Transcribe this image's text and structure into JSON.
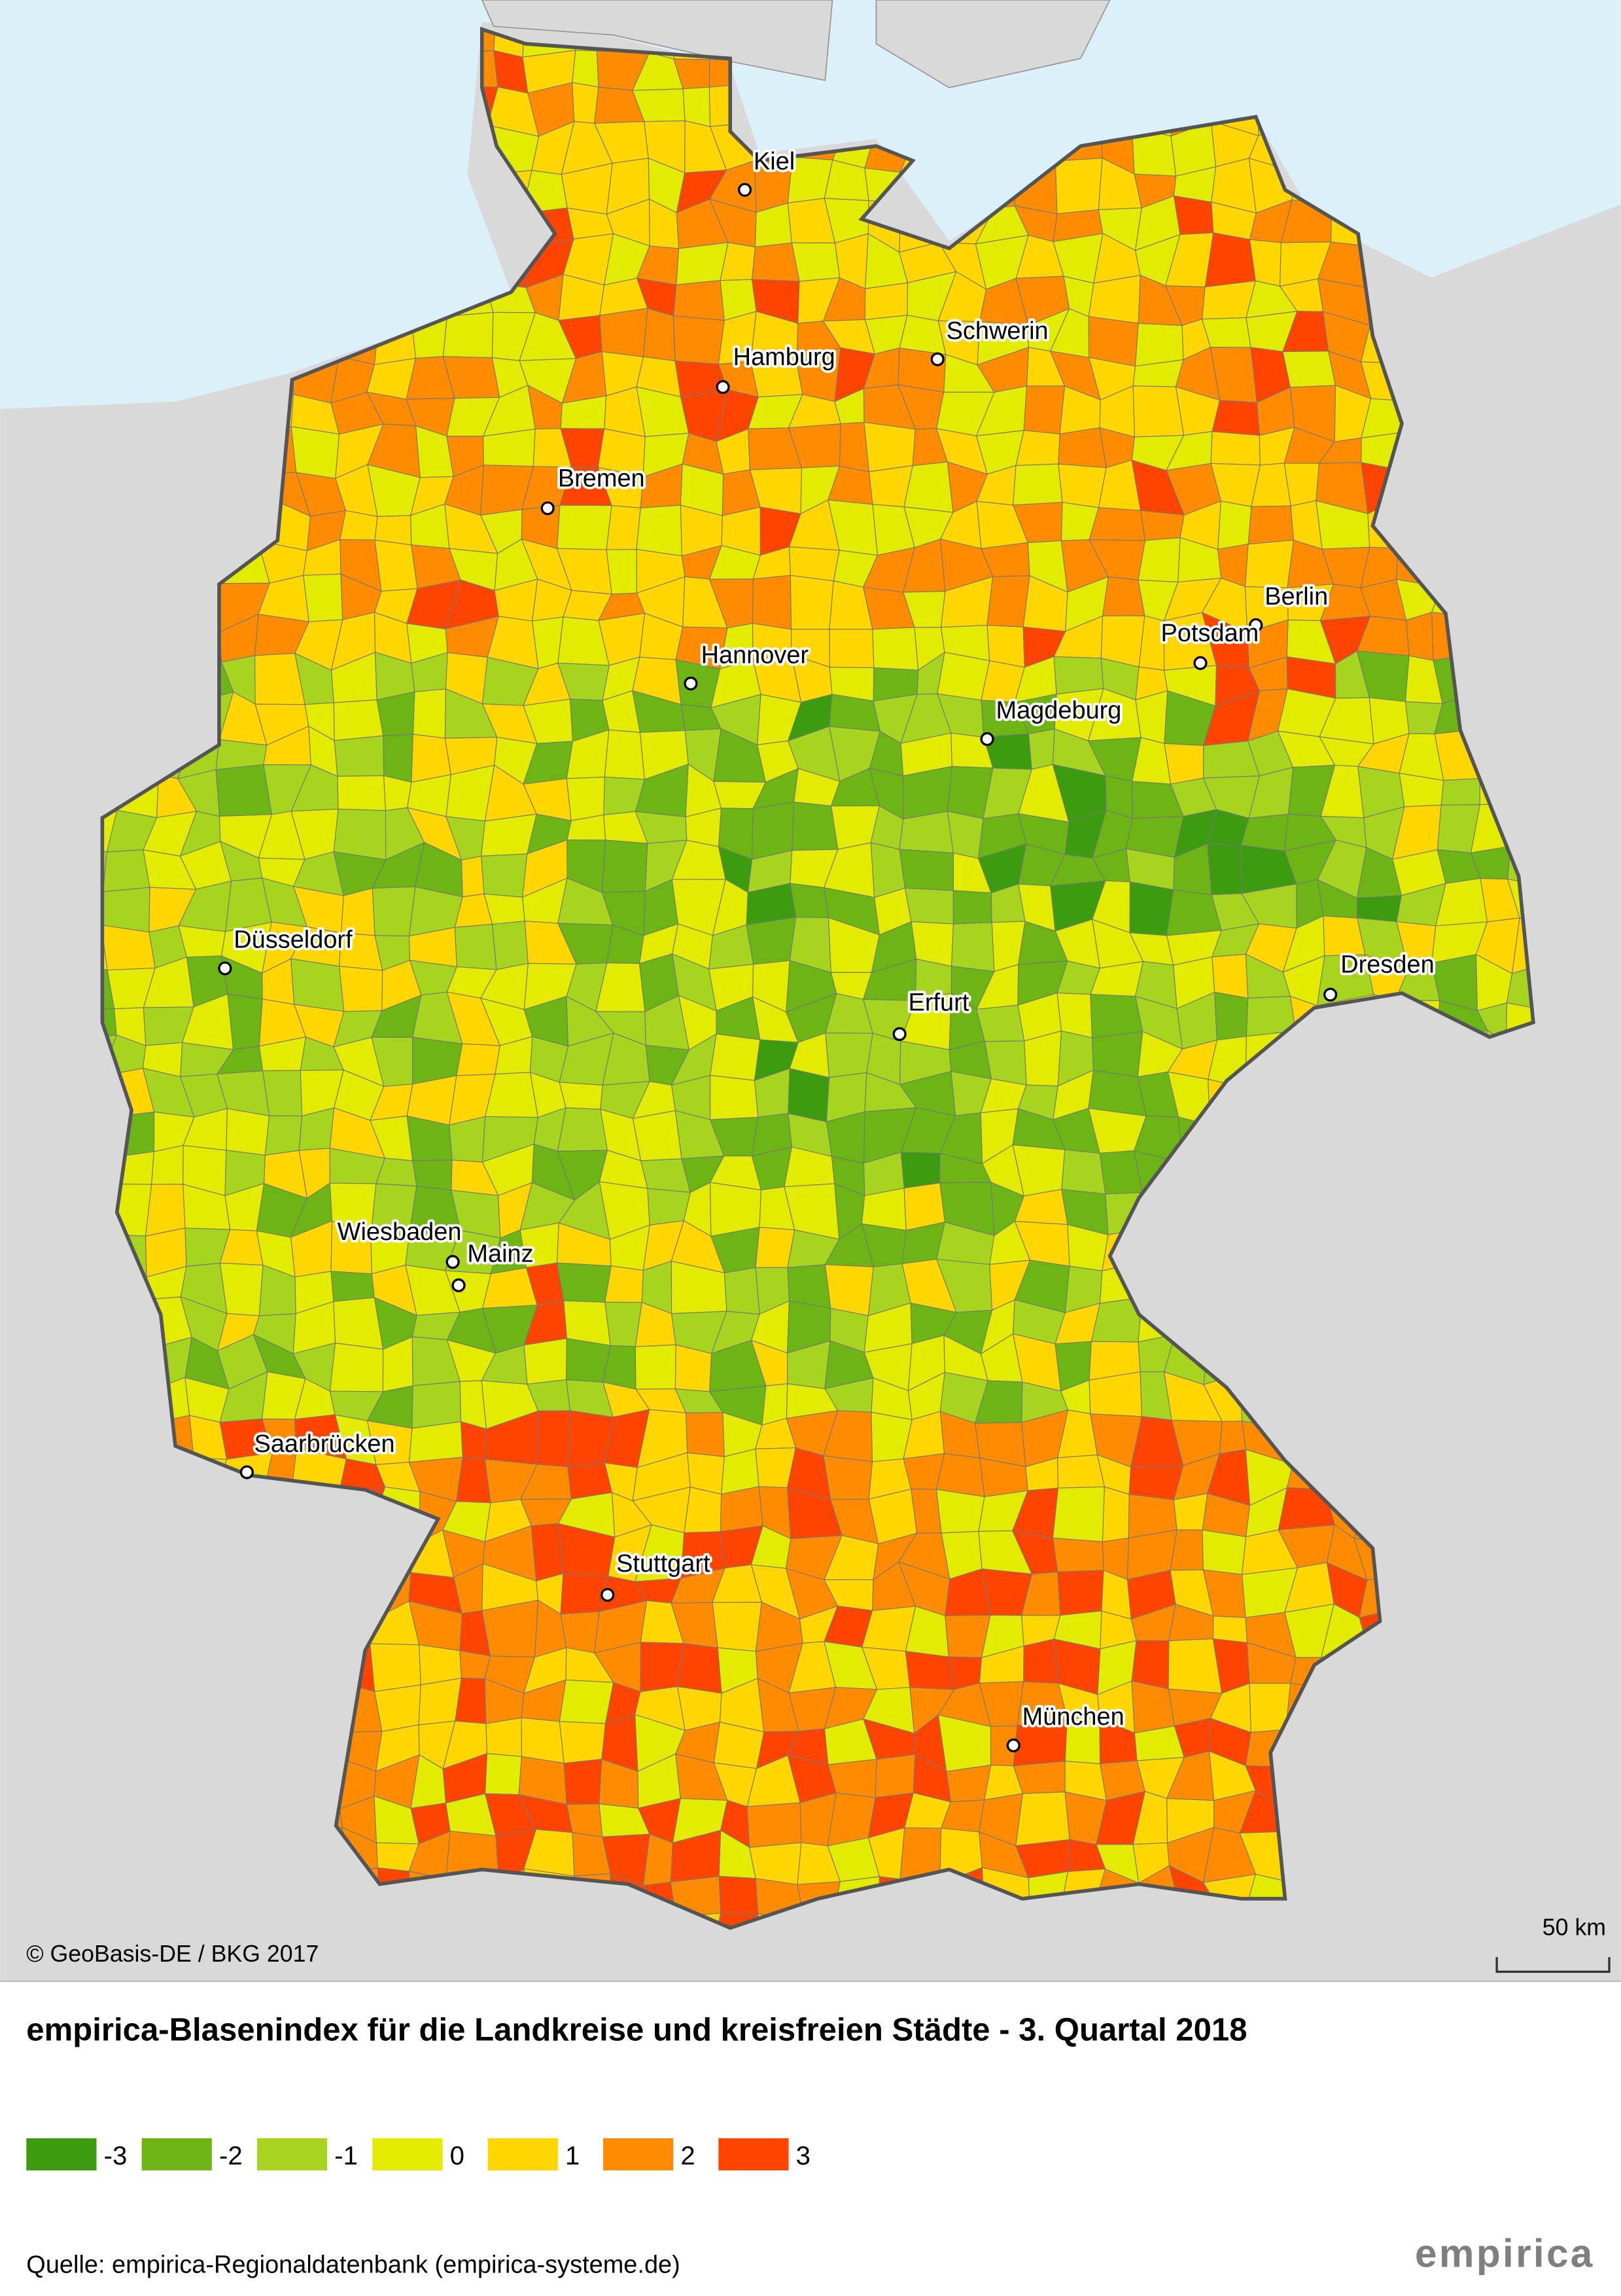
{
  "header": {
    "title": "empirica-Blasenindex für die Landkreise und kreisfreien Städte - 3. Quartal 2018",
    "copyright": "© GeoBasis-DE / BKG 2017",
    "scale": "50 km"
  },
  "map": {
    "cities": [
      "Kiel",
      "Hamburg",
      "Schwerin",
      "Bremen",
      "Berlin",
      "Potsdam",
      "Hannover",
      "Magdeburg",
      "Düsseldorf",
      "Dresden",
      "Erfurt",
      "Wiesbaden",
      "Mainz",
      "Saarbrücken",
      "Stuttgart",
      "München"
    ]
  },
  "legend": {
    "items": [
      {
        "value": -3,
        "color": "#3c9b0f"
      },
      {
        "value": -2,
        "color": "#6cb514"
      },
      {
        "value": -1,
        "color": "#a6d41f"
      },
      {
        "value": 0,
        "color": "#e2eb00"
      },
      {
        "value": 1,
        "color": "#ffd600"
      },
      {
        "value": 2,
        "color": "#ff8c00"
      },
      {
        "value": 3,
        "color": "#ff4400"
      }
    ]
  },
  "footer": {
    "source": "Quelle: empirica-Regionaldatenbank (empirica-systeme.de)",
    "logo": "empirica"
  }
}
